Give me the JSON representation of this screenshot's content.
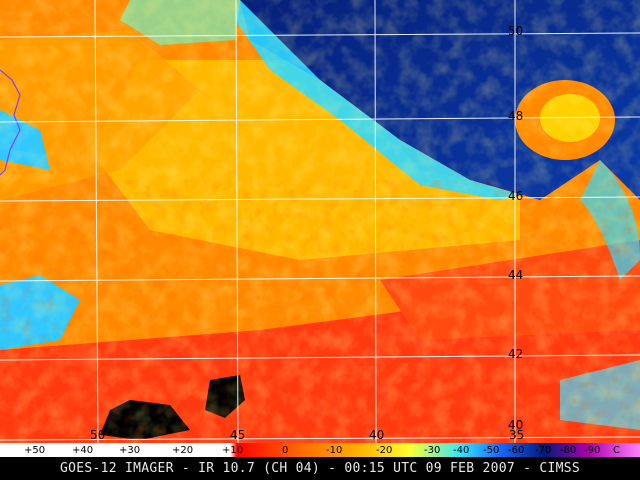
{
  "map": {
    "latitude_labels": [
      "50",
      "48",
      "46",
      "44",
      "42",
      "40"
    ],
    "longitude_labels": [
      "50",
      "45",
      "40",
      "35"
    ]
  },
  "color_scale": {
    "labels": [
      "+50",
      "+40",
      "+30",
      "+20",
      "+10",
      "0",
      "-10",
      "-20",
      "-30",
      "-40",
      "-50",
      "-60",
      "-70",
      "-80",
      "-90",
      "C"
    ],
    "colors": [
      "#ffffff",
      "#ff0000",
      "#ff6a00",
      "#ffb000",
      "#ffff30",
      "#30e8ff",
      "#1a6aff",
      "#001a7a",
      "#b000b0"
    ]
  },
  "footer": {
    "caption": "GOES-12 IMAGER - IR 10.7 (CH 04) - 00:15 UTC 09 FEB 2007 - CIMSS"
  }
}
